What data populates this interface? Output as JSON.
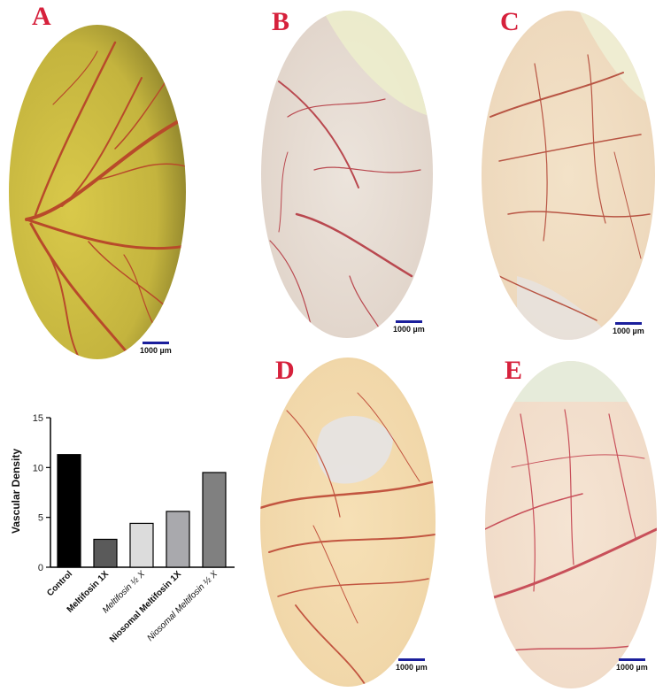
{
  "panels": [
    {
      "letter": "A",
      "scale": "1000 µm",
      "base": "#c4b43e",
      "edge": "#8a7f2a",
      "vessel": "#b84a2a"
    },
    {
      "letter": "B",
      "scale": "1000 µm",
      "base": "#e7dcd0",
      "edge": "#c9b7a8",
      "vessel": "#b9484f"
    },
    {
      "letter": "C",
      "scale": "1000 µm",
      "base": "#eed9bd",
      "edge": "#cfb493",
      "vessel": "#b85544"
    },
    {
      "letter": "D",
      "scale": "1000 µm",
      "base": "#f1d7a9",
      "edge": "#d4b27a",
      "vessel": "#c25540"
    },
    {
      "letter": "E",
      "scale": "1000 µm",
      "base": "#f1dcc9",
      "edge": "#d8bda6",
      "vessel": "#c8505a"
    }
  ],
  "chart_data": {
    "type": "bar",
    "categories": [
      "Control",
      "Meltifosin 1X",
      "Meltifosin ½ X",
      "Niosomal Meltifosin 1X",
      "Niosomal Meltifosin ½ X"
    ],
    "values": [
      11.3,
      2.8,
      4.4,
      5.6,
      9.5
    ],
    "colors": [
      "#000000",
      "#5a5a5a",
      "#dcdcdc",
      "#a9a9ad",
      "#808080"
    ],
    "ylabel": "Vascular Density",
    "ylim": [
      0,
      15
    ],
    "yticks": [
      "0",
      "5",
      "10",
      "15"
    ],
    "grid": false
  }
}
